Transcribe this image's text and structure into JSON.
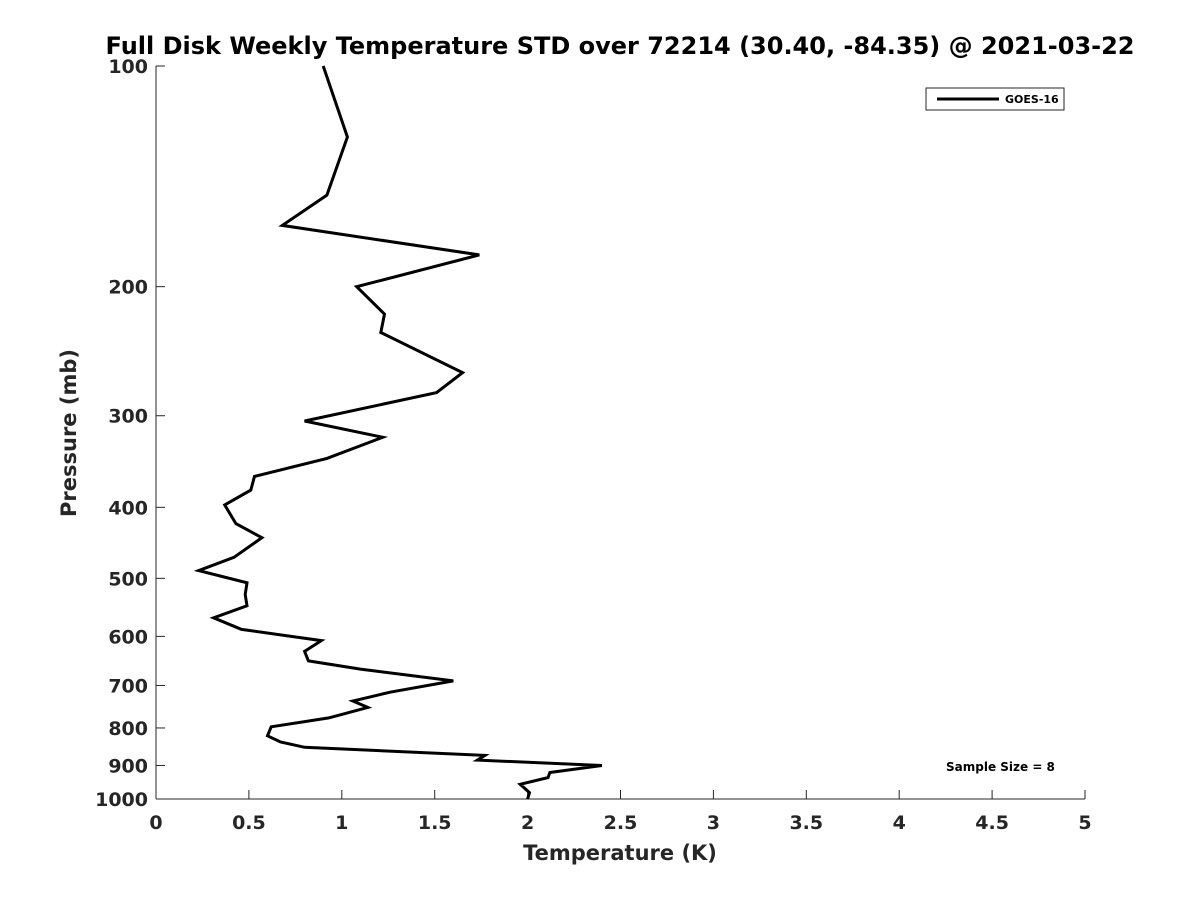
{
  "chart_data": {
    "type": "line",
    "title": "Full Disk Weekly Temperature STD over 72214 (30.40, -84.35) @ 2021-03-22",
    "xlabel": "Temperature (K)",
    "ylabel": "Pressure (mb)",
    "xlim": [
      0,
      5
    ],
    "ylim": [
      100,
      1000
    ],
    "y_scale": "log",
    "y_reversed": true,
    "x_ticks": [
      "0",
      "0.5",
      "1",
      "1.5",
      "2",
      "2.5",
      "3",
      "3.5",
      "4",
      "4.5",
      "5"
    ],
    "y_ticks": [
      "100",
      "200",
      "300",
      "400",
      "500",
      "600",
      "700",
      "800",
      "900",
      "1000"
    ],
    "grid": false,
    "legend_position": "top-right",
    "annotation": "Sample Size = 8",
    "series": [
      {
        "name": "GOES-16",
        "color": "#000000",
        "points": [
          [
            0.9,
            100
          ],
          [
            1.03,
            125
          ],
          [
            0.92,
            150
          ],
          [
            0.68,
            165
          ],
          [
            1.74,
            181
          ],
          [
            1.08,
            200
          ],
          [
            1.23,
            218
          ],
          [
            1.21,
            231
          ],
          [
            1.65,
            262
          ],
          [
            1.51,
            279
          ],
          [
            0.8,
            305
          ],
          [
            1.22,
            321
          ],
          [
            0.92,
            343
          ],
          [
            0.53,
            363
          ],
          [
            0.51,
            379
          ],
          [
            0.37,
            397
          ],
          [
            0.43,
            421
          ],
          [
            0.57,
            440
          ],
          [
            0.42,
            468
          ],
          [
            0.23,
            488
          ],
          [
            0.49,
            507
          ],
          [
            0.48,
            526
          ],
          [
            0.49,
            545
          ],
          [
            0.31,
            566
          ],
          [
            0.46,
            587
          ],
          [
            0.89,
            608
          ],
          [
            0.8,
            629
          ],
          [
            0.82,
            648
          ],
          [
            1.1,
            665
          ],
          [
            1.6,
            690
          ],
          [
            1.26,
            715
          ],
          [
            1.06,
            735
          ],
          [
            1.14,
            750
          ],
          [
            0.93,
            775
          ],
          [
            0.62,
            797
          ],
          [
            0.6,
            820
          ],
          [
            0.67,
            836
          ],
          [
            0.8,
            850
          ],
          [
            1.77,
            872
          ],
          [
            1.73,
            885
          ],
          [
            2.4,
            900
          ],
          [
            2.12,
            920
          ],
          [
            2.11,
            935
          ],
          [
            1.96,
            955
          ],
          [
            2.01,
            980
          ],
          [
            2.0,
            1000
          ]
        ]
      }
    ]
  }
}
